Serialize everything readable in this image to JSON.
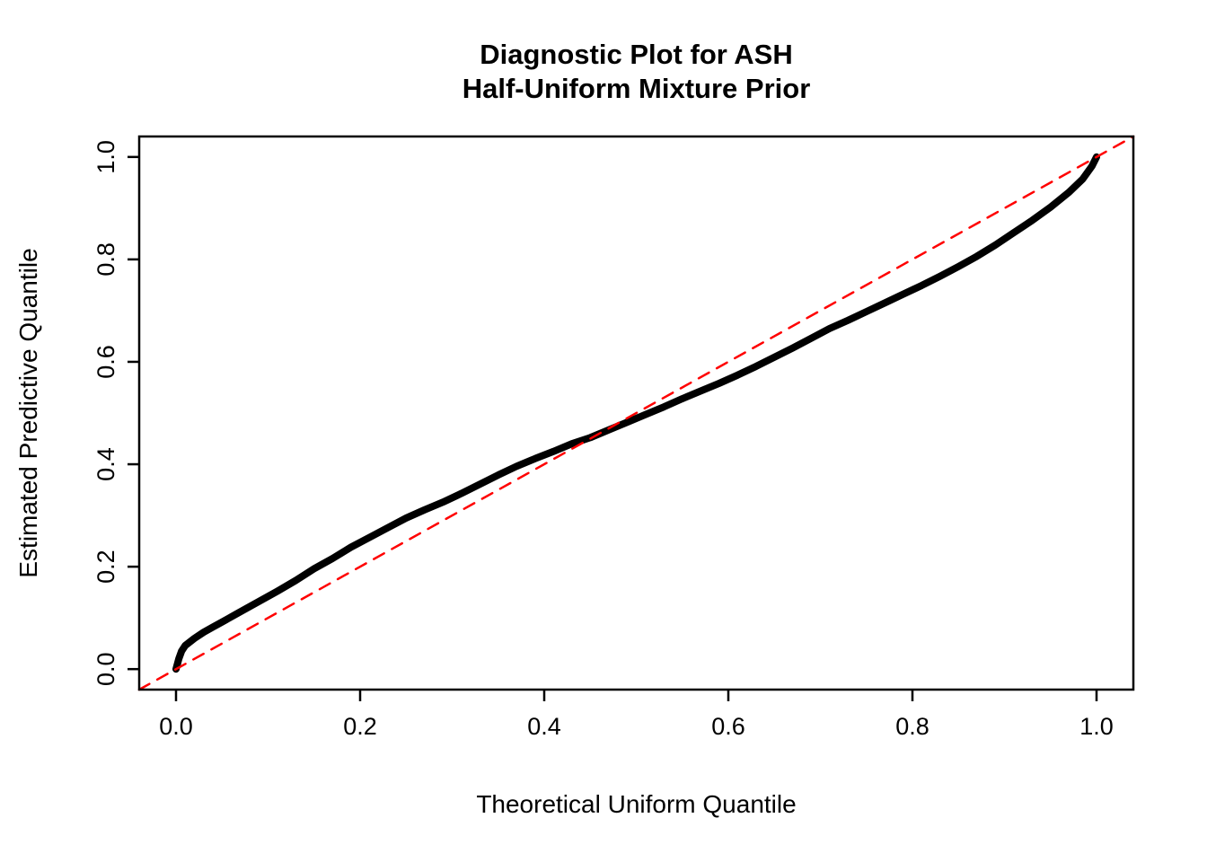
{
  "chart_data": {
    "type": "line",
    "title_lines": [
      "Diagnostic Plot for ASH",
      "Half-Uniform Mixture Prior"
    ],
    "xlabel": "Theoretical Uniform Quantile",
    "ylabel": "Estimated Predictive Quantile",
    "xlim": [
      -0.04,
      1.04
    ],
    "ylim": [
      -0.04,
      1.04
    ],
    "grid": false,
    "legend": null,
    "background": "#FFFFFF",
    "axis_color": "#000000",
    "x_ticks": [
      {
        "value": 0.0,
        "label": "0.0"
      },
      {
        "value": 0.2,
        "label": "0.2"
      },
      {
        "value": 0.4,
        "label": "0.4"
      },
      {
        "value": 0.6,
        "label": "0.6"
      },
      {
        "value": 0.8,
        "label": "0.8"
      },
      {
        "value": 1.0,
        "label": "1.0"
      }
    ],
    "y_ticks": [
      {
        "value": 0.0,
        "label": "0.0"
      },
      {
        "value": 0.2,
        "label": "0.2"
      },
      {
        "value": 0.4,
        "label": "0.4"
      },
      {
        "value": 0.6,
        "label": "0.6"
      },
      {
        "value": 0.8,
        "label": "0.8"
      },
      {
        "value": 1.0,
        "label": "1.0"
      }
    ],
    "series": [
      {
        "name": "estimated-vs-uniform-quantiles",
        "color": "#000000",
        "style": "solid",
        "width": 8,
        "points": [
          [
            0.0,
            0.0
          ],
          [
            0.003,
            0.02
          ],
          [
            0.006,
            0.035
          ],
          [
            0.01,
            0.046
          ],
          [
            0.02,
            0.06
          ],
          [
            0.03,
            0.072
          ],
          [
            0.04,
            0.082
          ],
          [
            0.05,
            0.092
          ],
          [
            0.07,
            0.112
          ],
          [
            0.09,
            0.132
          ],
          [
            0.11,
            0.152
          ],
          [
            0.13,
            0.173
          ],
          [
            0.15,
            0.196
          ],
          [
            0.17,
            0.216
          ],
          [
            0.19,
            0.238
          ],
          [
            0.21,
            0.257
          ],
          [
            0.23,
            0.276
          ],
          [
            0.25,
            0.295
          ],
          [
            0.27,
            0.311
          ],
          [
            0.29,
            0.326
          ],
          [
            0.31,
            0.343
          ],
          [
            0.33,
            0.361
          ],
          [
            0.35,
            0.379
          ],
          [
            0.37,
            0.396
          ],
          [
            0.39,
            0.411
          ],
          [
            0.41,
            0.425
          ],
          [
            0.43,
            0.44
          ],
          [
            0.45,
            0.452
          ],
          [
            0.47,
            0.467
          ],
          [
            0.49,
            0.482
          ],
          [
            0.51,
            0.497
          ],
          [
            0.53,
            0.512
          ],
          [
            0.55,
            0.528
          ],
          [
            0.57,
            0.543
          ],
          [
            0.59,
            0.558
          ],
          [
            0.61,
            0.574
          ],
          [
            0.63,
            0.591
          ],
          [
            0.65,
            0.609
          ],
          [
            0.67,
            0.627
          ],
          [
            0.69,
            0.646
          ],
          [
            0.71,
            0.665
          ],
          [
            0.73,
            0.681
          ],
          [
            0.75,
            0.698
          ],
          [
            0.77,
            0.715
          ],
          [
            0.79,
            0.732
          ],
          [
            0.81,
            0.749
          ],
          [
            0.83,
            0.767
          ],
          [
            0.85,
            0.786
          ],
          [
            0.87,
            0.806
          ],
          [
            0.89,
            0.828
          ],
          [
            0.91,
            0.852
          ],
          [
            0.93,
            0.876
          ],
          [
            0.95,
            0.902
          ],
          [
            0.97,
            0.931
          ],
          [
            0.985,
            0.957
          ],
          [
            0.995,
            0.982
          ],
          [
            1.0,
            1.0
          ]
        ]
      },
      {
        "name": "identity-reference-line",
        "color": "#FF0000",
        "style": "dashed",
        "width": 2.5,
        "points": [
          [
            -0.04,
            -0.04
          ],
          [
            1.04,
            1.04
          ]
        ]
      }
    ]
  }
}
